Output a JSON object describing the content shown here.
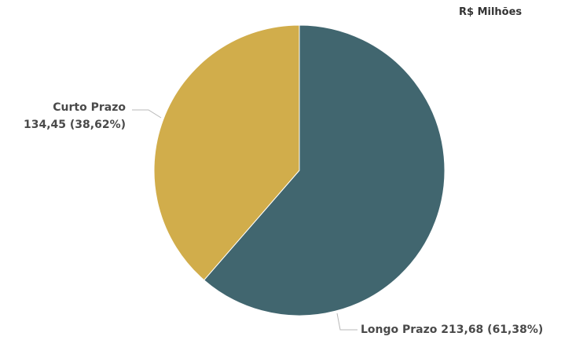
{
  "chart_data": {
    "type": "pie",
    "unit_label": "R$ Milhões",
    "slices": [
      {
        "name": "Longo Prazo",
        "value": 213.68,
        "value_label": "213,68",
        "percent_label": "61,38%",
        "color": "#41666f"
      },
      {
        "name": "Curto Prazo",
        "value": 134.45,
        "value_label": "134,45",
        "percent_label": "38,62%",
        "color": "#d1ad4b"
      }
    ],
    "start_angle_deg": 0,
    "direction": "clockwise",
    "legend": "none"
  }
}
